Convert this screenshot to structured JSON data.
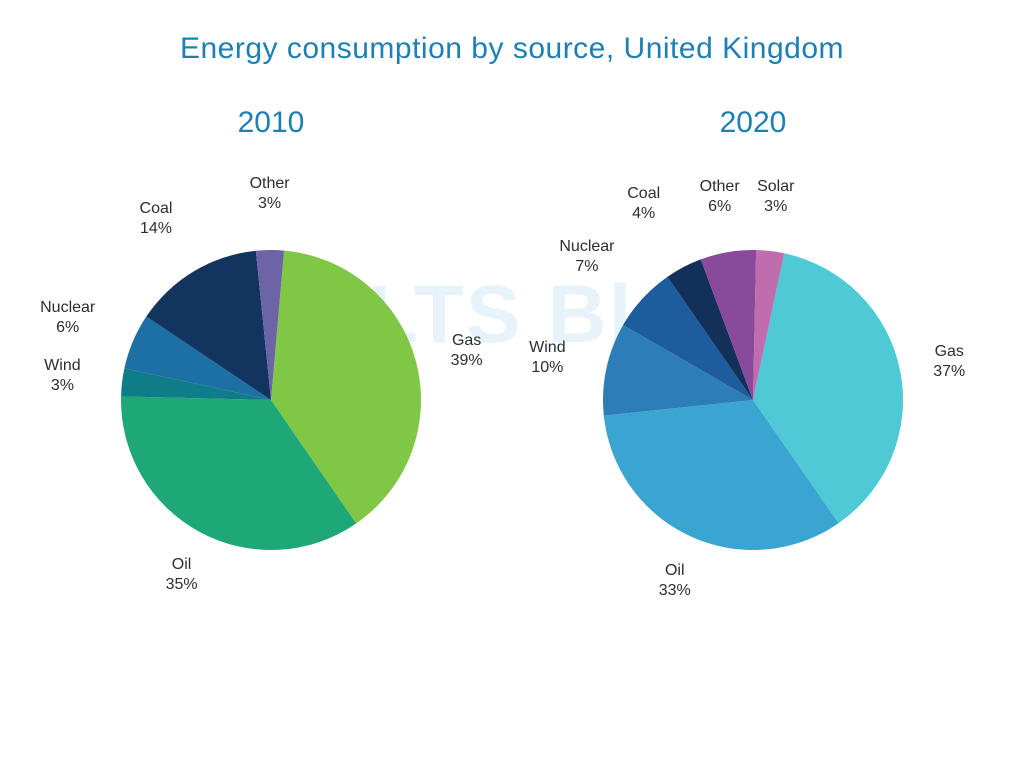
{
  "title": "Energy consumption by source, United Kingdom",
  "title_color": "#1c7fb5",
  "title_fontsize": 30,
  "year_color": "#1c7fb5",
  "year_fontsize": 30,
  "label_color": "#2a2e33",
  "label_fontsize": 16,
  "background_color": "#ffffff",
  "watermark_text": "IELTS Blog",
  "watermark_color": "#e6f3fb",
  "pie_radius": 150,
  "label_line_height": 1.25,
  "charts": [
    {
      "year": "2010",
      "type": "pie",
      "start_angle_deg": -85,
      "direction": "clockwise",
      "slices": [
        {
          "name": "Gas",
          "value": 39,
          "color": "#7fc744",
          "label_radius": 192,
          "label_side": "right"
        },
        {
          "name": "Oil",
          "value": 35,
          "color": "#1fa877",
          "label_radius": 188,
          "label_side": "bottom"
        },
        {
          "name": "Wind",
          "value": 3,
          "color": "#0f7d88",
          "label_radius": 200,
          "label_side": "left"
        },
        {
          "name": "Nuclear",
          "value": 6,
          "color": "#1d70a3",
          "label_radius": 210,
          "label_side": "left"
        },
        {
          "name": "Coal",
          "value": 14,
          "color": "#13345f",
          "label_radius": 200,
          "label_side": "topleft"
        },
        {
          "name": "Other",
          "value": 3,
          "color": "#6d64a8",
          "label_radius": 200,
          "label_side": "top"
        }
      ]
    },
    {
      "year": "2020",
      "type": "pie",
      "start_angle_deg": -78,
      "direction": "clockwise",
      "slices": [
        {
          "name": "Gas",
          "value": 37,
          "color": "#4fc9d6",
          "label_radius": 190,
          "label_side": "right"
        },
        {
          "name": "Oil",
          "value": 33,
          "color": "#3ba5d1",
          "label_radius": 188,
          "label_side": "bottom"
        },
        {
          "name": "Wind",
          "value": 10,
          "color": "#2d7eb8",
          "label_radius": 200,
          "label_side": "left"
        },
        {
          "name": "Nuclear",
          "value": 7,
          "color": "#1d5d9e",
          "label_radius": 212,
          "label_side": "left"
        },
        {
          "name": "Coal",
          "value": 4,
          "color": "#12305a",
          "label_radius": 210,
          "label_side": "topleft"
        },
        {
          "name": "Other",
          "value": 6,
          "color": "#8a4a9c",
          "label_radius": 200,
          "label_side": "top"
        },
        {
          "name": "Solar",
          "value": 3,
          "color": "#c06db0",
          "label_radius": 198,
          "label_side": "top"
        }
      ]
    }
  ]
}
